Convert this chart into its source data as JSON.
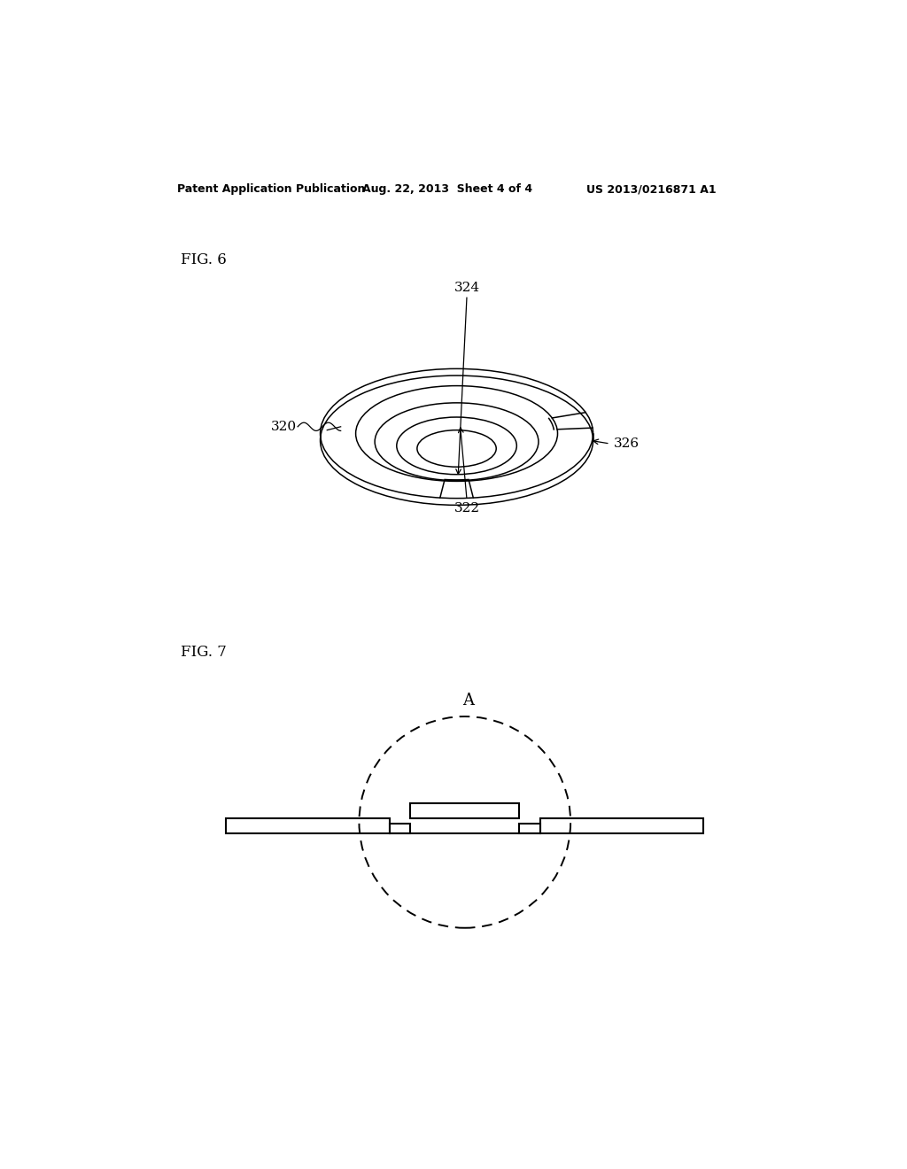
{
  "bg_color": "#ffffff",
  "header_left": "Patent Application Publication",
  "header_mid": "Aug. 22, 2013  Sheet 4 of 4",
  "header_right": "US 2013/0216871 A1",
  "fig6_label": "FIG. 6",
  "fig7_label": "FIG. 7",
  "label_320": "320",
  "label_322": "322",
  "label_324": "324",
  "label_326": "326",
  "label_A": "A"
}
